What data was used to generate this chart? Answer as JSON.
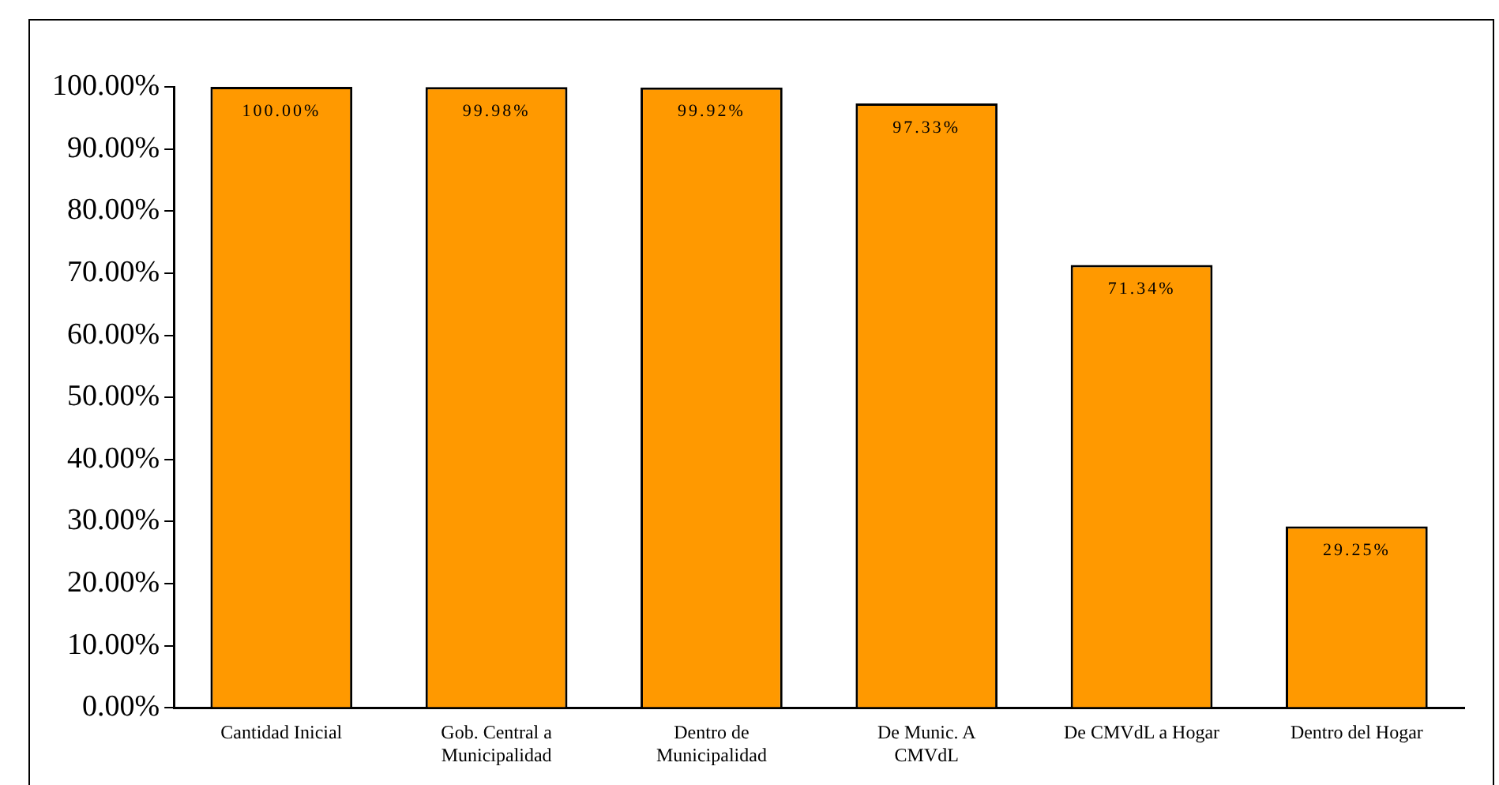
{
  "chart_data": {
    "type": "bar",
    "categories": [
      "Cantidad Inicial",
      "Gob. Central a Municipalidad",
      "Dentro de Municipalidad",
      "De Munic. A CMVdL",
      "De CMVdL a Hogar",
      "Dentro del Hogar"
    ],
    "values": [
      100,
      99.98,
      99.92,
      97.33,
      71.34,
      29.25
    ],
    "value_labels": [
      "100.00%",
      "99.98%",
      "99.92%",
      "97.33%",
      "71.34%",
      "29.25%"
    ],
    "color": "#ff9900",
    "ylim": [
      0,
      100
    ],
    "yticks": [
      {
        "value": 0,
        "label": "0.00%"
      },
      {
        "value": 10,
        "label": "10.00%"
      },
      {
        "value": 20,
        "label": "20.00%"
      },
      {
        "value": 30,
        "label": "30.00%"
      },
      {
        "value": 40,
        "label": "40.00%"
      },
      {
        "value": 50,
        "label": "50.00%"
      },
      {
        "value": 60,
        "label": "60.00%"
      },
      {
        "value": 70,
        "label": "70.00%"
      },
      {
        "value": 80,
        "label": "80.00%"
      },
      {
        "value": 90,
        "label": "90.00%"
      },
      {
        "value": 100,
        "label": "100.00%"
      }
    ],
    "grid": false,
    "legend": false
  }
}
